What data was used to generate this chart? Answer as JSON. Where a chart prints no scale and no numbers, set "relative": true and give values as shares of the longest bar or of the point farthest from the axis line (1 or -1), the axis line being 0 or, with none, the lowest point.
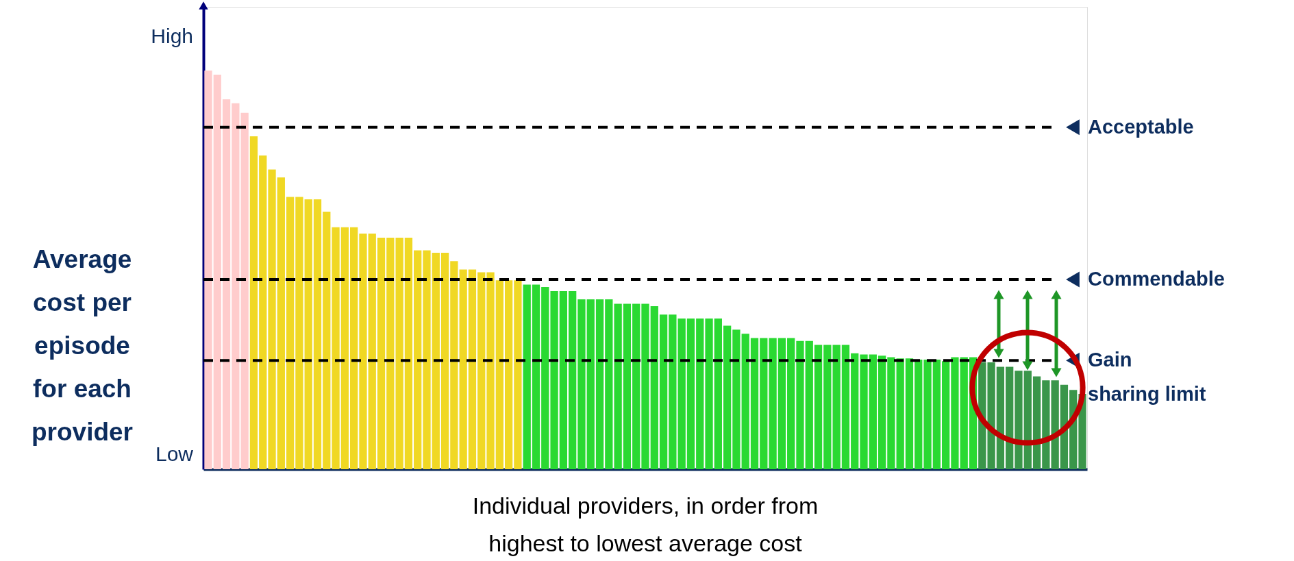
{
  "chart_data": {
    "type": "bar",
    "relative": true,
    "ylabel": "Average cost per episode for each provider",
    "xlabel": "Individual providers, in order from highest to lowest average cost",
    "annotations": [
      "High",
      "Low"
    ],
    "categories": [
      null,
      null,
      null,
      null,
      null,
      null,
      null,
      null,
      null,
      null,
      null,
      null,
      null,
      null,
      null,
      null,
      null,
      null,
      null,
      null,
      null,
      null,
      null,
      null,
      null,
      null,
      null,
      null,
      null,
      null,
      null,
      null,
      null,
      null,
      null,
      null,
      null,
      null,
      null,
      null,
      null,
      null,
      null,
      null,
      null,
      null,
      null,
      null,
      null,
      null,
      null,
      null,
      null,
      null,
      null,
      null,
      null,
      null,
      null,
      null,
      null,
      null,
      null,
      null,
      null,
      null,
      null,
      null,
      null,
      null,
      null,
      null,
      null,
      null,
      null,
      null,
      null,
      null,
      null,
      null,
      null,
      null,
      null,
      null,
      null,
      null,
      null,
      null,
      null,
      null,
      null,
      null,
      null,
      null,
      null,
      null,
      null
    ],
    "values": [
      1.0,
      0.99,
      0.928,
      0.918,
      0.894,
      0.835,
      0.787,
      0.752,
      0.732,
      0.683,
      0.683,
      0.677,
      0.677,
      0.646,
      0.607,
      0.607,
      0.607,
      0.591,
      0.591,
      0.581,
      0.581,
      0.581,
      0.581,
      0.549,
      0.549,
      0.543,
      0.543,
      0.522,
      0.501,
      0.501,
      0.494,
      0.494,
      0.474,
      0.474,
      0.474,
      0.463,
      0.463,
      0.457,
      0.447,
      0.447,
      0.447,
      0.426,
      0.426,
      0.426,
      0.426,
      0.415,
      0.415,
      0.415,
      0.415,
      0.409,
      0.388,
      0.388,
      0.378,
      0.378,
      0.378,
      0.378,
      0.378,
      0.36,
      0.35,
      0.34,
      0.329,
      0.329,
      0.329,
      0.329,
      0.329,
      0.322,
      0.322,
      0.312,
      0.312,
      0.312,
      0.312,
      0.291,
      0.288,
      0.288,
      0.285,
      0.281,
      0.278,
      0.278,
      0.275,
      0.275,
      0.275,
      0.271,
      0.281,
      0.281,
      0.281,
      0.268,
      0.268,
      0.257,
      0.257,
      0.247,
      0.247,
      0.233,
      0.223,
      0.223,
      0.212,
      0.199,
      0.189
    ],
    "colors": [
      "#ffcccc",
      "#ffcccc",
      "#ffcccc",
      "#ffcccc",
      "#ffcccc",
      "#f0d824",
      "#f0d824",
      "#f0d824",
      "#f0d824",
      "#f0d824",
      "#f0d824",
      "#f0d824",
      "#f0d824",
      "#f0d824",
      "#f0d824",
      "#f0d824",
      "#f0d824",
      "#f0d824",
      "#f0d824",
      "#f0d824",
      "#f0d824",
      "#f0d824",
      "#f0d824",
      "#f0d824",
      "#f0d824",
      "#f0d824",
      "#f0d824",
      "#f0d824",
      "#f0d824",
      "#f0d824",
      "#f0d824",
      "#f0d824",
      "#f0d824",
      "#f0d824",
      "#f0d824",
      "#2ad932",
      "#2ad932",
      "#2ad932",
      "#2ad932",
      "#2ad932",
      "#2ad932",
      "#2ad932",
      "#2ad932",
      "#2ad932",
      "#2ad932",
      "#2ad932",
      "#2ad932",
      "#2ad932",
      "#2ad932",
      "#2ad932",
      "#2ad932",
      "#2ad932",
      "#2ad932",
      "#2ad932",
      "#2ad932",
      "#2ad932",
      "#2ad932",
      "#2ad932",
      "#2ad932",
      "#2ad932",
      "#2ad932",
      "#2ad932",
      "#2ad932",
      "#2ad932",
      "#2ad932",
      "#2ad932",
      "#2ad932",
      "#2ad932",
      "#2ad932",
      "#2ad932",
      "#2ad932",
      "#2ad932",
      "#2ad932",
      "#2ad932",
      "#2ad932",
      "#2ad932",
      "#2ad932",
      "#2ad932",
      "#2ad932",
      "#2ad932",
      "#2ad932",
      "#2ad932",
      "#2ad932",
      "#2ad932",
      "#2ad932",
      "#3a964a",
      "#3a964a",
      "#3a964a",
      "#3a964a",
      "#3a964a",
      "#3a964a",
      "#3a964a",
      "#3a964a",
      "#3a964a",
      "#3a964a",
      "#3a964a",
      "#3a964a"
    ],
    "ref_lines": [
      {
        "axis": "y",
        "value": 0.858,
        "label": "Acceptable",
        "color": "#000000",
        "line_style": "dashed"
      },
      {
        "axis": "y",
        "value": 0.476,
        "label": "Commendable",
        "color": "#000000",
        "line_style": "dashed"
      },
      {
        "axis": "y",
        "value": 0.273,
        "label": "Gain sharing limit",
        "color": "#000000",
        "line_style": "dashed"
      }
    ]
  }
}
